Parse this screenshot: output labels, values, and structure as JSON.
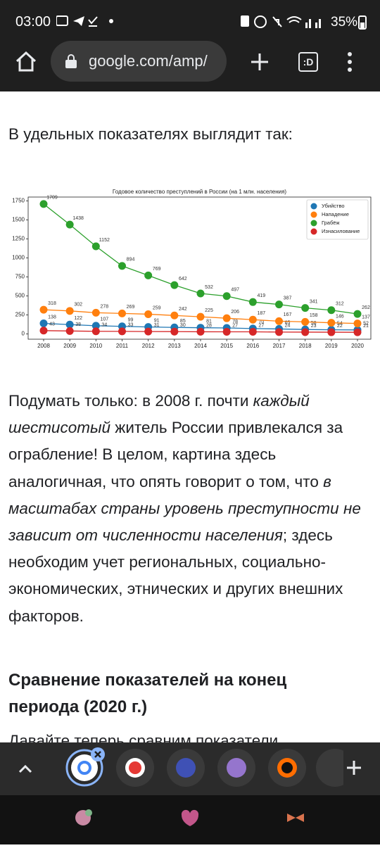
{
  "status_bar": {
    "time": "03:00",
    "battery": "35%"
  },
  "browser": {
    "url": "google.com/amp/",
    "tab_label": ":D"
  },
  "article": {
    "intro": "В удельных показателях выглядит так:",
    "paragraph": [
      {
        "text": "Подумать только: в 2008 г. почти ",
        "italic": false
      },
      {
        "text": "каждый шестисотый",
        "italic": true
      },
      {
        "text": " житель России привлекался за ограбление! В целом, картина здесь аналогичная, что опять говорит о том, что ",
        "italic": false
      },
      {
        "text": "в масштабах страны уровень преступности не зависит от численности населения",
        "italic": true
      },
      {
        "text": "; здесь необходим учет региональных, социально-экономических, этнических и других внешних факторов.",
        "italic": false
      }
    ],
    "heading": "Сравнение показателей на конец периода (2020 г.)",
    "cut_text": "Давайте теперь сравним показатели"
  },
  "chart_data": {
    "type": "line",
    "title": "Годовое количество преступлений в России (на 1 млн. населения)",
    "categories": [
      "2008",
      "2009",
      "2010",
      "2011",
      "2012",
      "2013",
      "2014",
      "2015",
      "2016",
      "2017",
      "2018",
      "2019",
      "2020"
    ],
    "series": [
      {
        "name": "Убийство",
        "color": "#1f77b4",
        "values": [
          138,
          122,
          107,
          99,
          91,
          85,
          81,
          78,
          70,
          65,
          58,
          54,
          52
        ]
      },
      {
        "name": "Нападение",
        "color": "#ff7f0e",
        "values": [
          318,
          302,
          278,
          269,
          259,
          242,
          225,
          206,
          187,
          167,
          158,
          146,
          137
        ]
      },
      {
        "name": "Грабёж",
        "color": "#2ca02c",
        "values": [
          1709,
          1438,
          1152,
          894,
          769,
          642,
          532,
          497,
          419,
          387,
          341,
          312,
          262
        ]
      },
      {
        "name": "Изнасилование",
        "color": "#d62728",
        "values": [
          43,
          38,
          34,
          33,
          31,
          30,
          28,
          27,
          27,
          24,
          23,
          22,
          21
        ]
      }
    ],
    "ylim": [
      -70,
      1800
    ],
    "yticks": [
      0,
      250,
      500,
      750,
      1000,
      1250,
      1500,
      1750
    ],
    "grid": false,
    "legend": "upper right"
  }
}
